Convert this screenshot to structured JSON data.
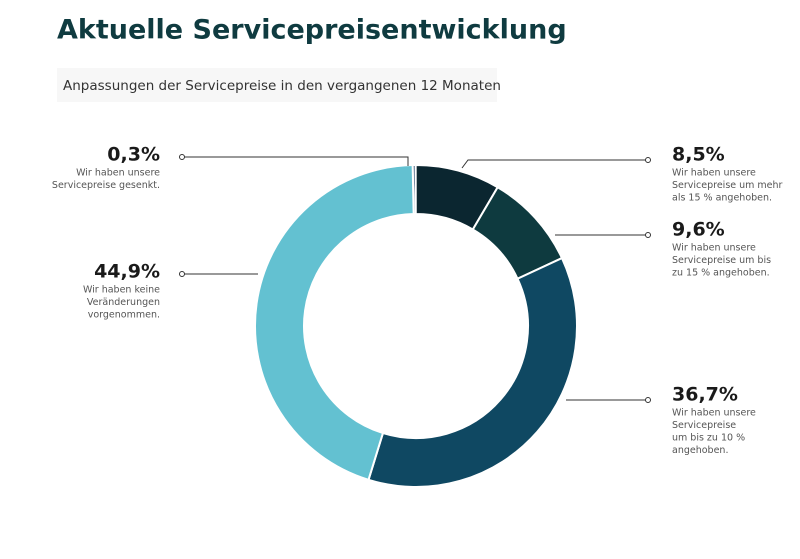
{
  "chart_data": {
    "type": "donut",
    "title": "Aktuelle Servicepreisentwicklung",
    "subtitle": "Anpassungen der Servicepreise in den vergangenen 12 Monaten",
    "categories": [
      [
        "Wir haben unsere",
        "Servicepreise gesenkt."
      ],
      [
        "Wir haben unsere",
        "Servicepreise um mehr",
        "als 15 % angehoben."
      ],
      [
        "Wir haben unsere",
        "Servicepreise um bis",
        "zu 15 % angehoben."
      ],
      [
        "Wir haben unsere",
        "Servicepreise",
        "um bis zu 10 %",
        "angehoben."
      ],
      [
        "Wir haben keine",
        "Veränderungen",
        "vorgenommen."
      ]
    ],
    "values": [
      0.3,
      8.5,
      9.6,
      36.7,
      44.9
    ],
    "value_labels": [
      "0,3%",
      "8,5%",
      "9,6%",
      "36,7%",
      "44,9%"
    ],
    "colors": [
      "#1d3b63",
      "#0b2630",
      "#0e3a3f",
      "#0f4862",
      "#63c1d1"
    ]
  }
}
